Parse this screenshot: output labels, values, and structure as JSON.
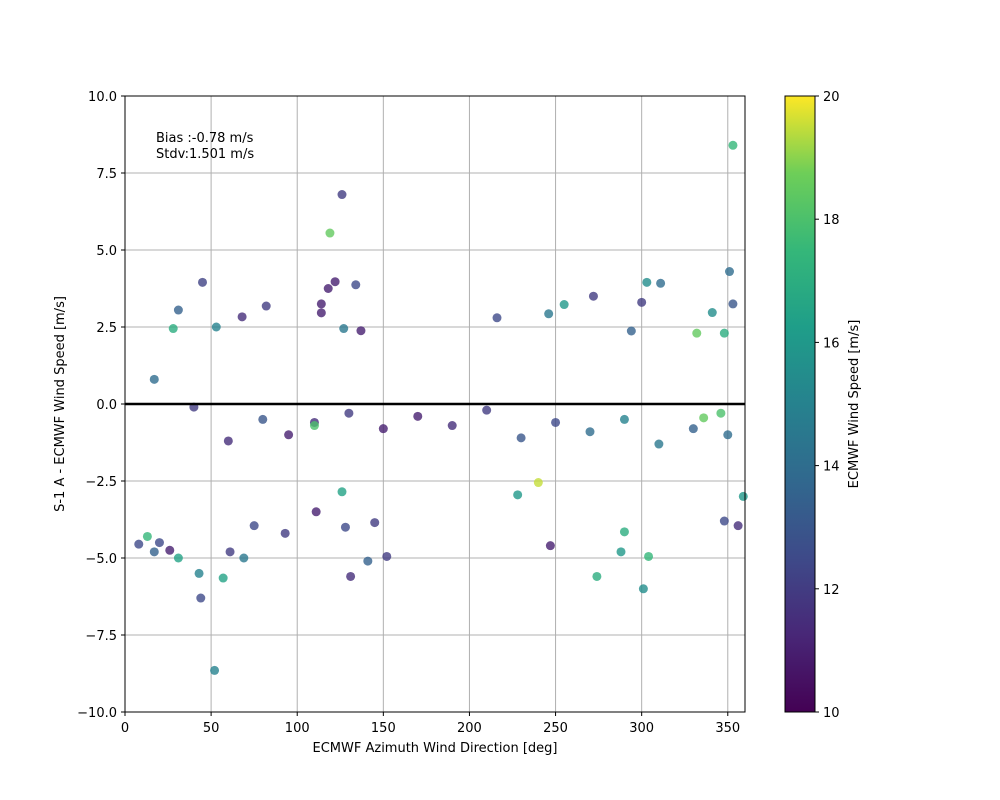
{
  "chart_data": {
    "type": "scatter",
    "xlabel": "ECMWF Azimuth Wind Direction [deg]",
    "ylabel": "S-1 A - ECMWF Wind Speed [m/s]",
    "xlim": [
      0,
      360
    ],
    "ylim": [
      -10,
      10
    ],
    "xticks": [
      0,
      50,
      100,
      150,
      200,
      250,
      300,
      350
    ],
    "xtick_labels": [
      "0",
      "50",
      "100",
      "150",
      "200",
      "250",
      "300",
      "350"
    ],
    "yticks": [
      -10,
      -7.5,
      -5,
      -2.5,
      0,
      2.5,
      5,
      7.5,
      10
    ],
    "ytick_labels": [
      "−10.0",
      "−7.5",
      "−5.0",
      "−2.5",
      "0.0",
      "2.5",
      "5.0",
      "7.5",
      "10.0"
    ],
    "grid": true,
    "zero_line": 0,
    "annotations": [
      "Bias :-0.78 m/s",
      "Stdv:1.501 m/s"
    ],
    "colorbar": {
      "label": "ECMWF Wind Speed [m/s]",
      "range": [
        10,
        20
      ],
      "ticks": [
        10,
        12,
        14,
        16,
        18,
        20
      ],
      "tick_labels": [
        "10",
        "12",
        "14",
        "16",
        "18",
        "20"
      ],
      "colormap": "viridis"
    },
    "points": [
      [
        353,
        8.4,
        17.5
      ],
      [
        126,
        6.8,
        12.0
      ],
      [
        119,
        5.55,
        18.5
      ],
      [
        45,
        3.95,
        12.2
      ],
      [
        122,
        3.97,
        11.0
      ],
      [
        134,
        3.87,
        12.5
      ],
      [
        118,
        3.75,
        11.0
      ],
      [
        114,
        3.25,
        11.0
      ],
      [
        31,
        3.05,
        13.5
      ],
      [
        82,
        3.18,
        12.0
      ],
      [
        351,
        4.3,
        14.0
      ],
      [
        303,
        3.95,
        15.5
      ],
      [
        311,
        3.92,
        14.0
      ],
      [
        272,
        3.5,
        12.0
      ],
      [
        255,
        3.23,
        16.0
      ],
      [
        300,
        3.3,
        12.0
      ],
      [
        353,
        3.25,
        13.0
      ],
      [
        68,
        2.83,
        11.5
      ],
      [
        114,
        2.96,
        11.0
      ],
      [
        216,
        2.8,
        12.5
      ],
      [
        246,
        2.93,
        14.5
      ],
      [
        28,
        2.45,
        17.0
      ],
      [
        53,
        2.5,
        15.0
      ],
      [
        127,
        2.45,
        14.5
      ],
      [
        137,
        2.38,
        11.0
      ],
      [
        332,
        2.3,
        18.5
      ],
      [
        348,
        2.3,
        17.0
      ],
      [
        294,
        2.37,
        13.5
      ],
      [
        341,
        2.97,
        15.5
      ],
      [
        17,
        0.8,
        14.0
      ],
      [
        40,
        -0.1,
        12.0
      ],
      [
        60,
        -1.2,
        11.5
      ],
      [
        80,
        -0.5,
        13.0
      ],
      [
        95,
        -1.0,
        11.0
      ],
      [
        110,
        -0.6,
        11.5
      ],
      [
        130,
        -0.3,
        12.0
      ],
      [
        150,
        -0.8,
        11.0
      ],
      [
        170,
        -0.4,
        11.0
      ],
      [
        190,
        -0.7,
        11.5
      ],
      [
        210,
        -0.2,
        12.0
      ],
      [
        230,
        -1.1,
        13.0
      ],
      [
        250,
        -0.6,
        12.5
      ],
      [
        270,
        -0.9,
        14.0
      ],
      [
        290,
        -0.5,
        15.0
      ],
      [
        310,
        -1.3,
        14.5
      ],
      [
        330,
        -0.8,
        13.5
      ],
      [
        350,
        -1.0,
        14.0
      ],
      [
        13,
        -4.3,
        17.5
      ],
      [
        31,
        -5.0,
        16.5
      ],
      [
        43,
        -5.5,
        15.0
      ],
      [
        57,
        -5.65,
        16.5
      ],
      [
        44,
        -6.3,
        12.5
      ],
      [
        52,
        -8.65,
        15.0
      ],
      [
        69,
        -5.0,
        14.5
      ],
      [
        61,
        -4.8,
        12.0
      ],
      [
        131,
        -5.6,
        11.5
      ],
      [
        141,
        -5.1,
        13.5
      ],
      [
        152,
        -4.95,
        12.0
      ],
      [
        128,
        -4.0,
        12.5
      ],
      [
        145,
        -3.85,
        12.0
      ],
      [
        274,
        -5.6,
        17.0
      ],
      [
        301,
        -6.0,
        15.5
      ],
      [
        304,
        -4.95,
        17.5
      ],
      [
        288,
        -4.8,
        16.0
      ],
      [
        290,
        -4.15,
        17.0
      ],
      [
        247,
        -4.6,
        11.0
      ],
      [
        240,
        -2.55,
        19.5
      ],
      [
        228,
        -2.95,
        16.0
      ],
      [
        126,
        -2.85,
        16.5
      ],
      [
        111,
        -3.5,
        11.0
      ],
      [
        20,
        -4.5,
        12.5
      ],
      [
        8,
        -4.55,
        12.5
      ],
      [
        17,
        -4.8,
        13.5
      ],
      [
        348,
        -3.8,
        12.5
      ],
      [
        356,
        -3.95,
        11.5
      ],
      [
        359,
        -3.0,
        16.0
      ],
      [
        336,
        -0.45,
        18.5
      ],
      [
        346,
        -0.3,
        18.0
      ],
      [
        110,
        -0.7,
        18.0
      ],
      [
        26,
        -4.75,
        11.0
      ],
      [
        75,
        -3.95,
        12.5
      ],
      [
        93,
        -4.2,
        12.0
      ]
    ]
  }
}
